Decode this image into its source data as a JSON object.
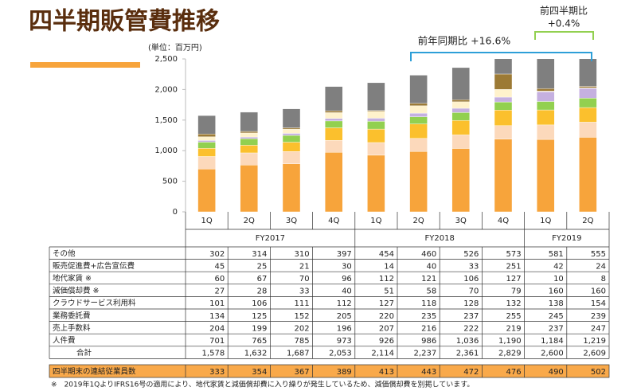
{
  "chart_data": {
    "type": "bar",
    "title": "四半期販管費推移",
    "unit_label": "(単位：百万円)",
    "groups": [
      {
        "label": "FY2017",
        "categories": [
          "1Q",
          "2Q",
          "3Q",
          "4Q"
        ]
      },
      {
        "label": "FY2018",
        "categories": [
          "1Q",
          "2Q",
          "3Q",
          "4Q"
        ]
      },
      {
        "label": "FY2019",
        "categories": [
          "1Q",
          "2Q"
        ]
      }
    ],
    "ylim": [
      0,
      2500
    ],
    "yticks": [
      0,
      500,
      {
        "value": 1000,
        "label": "1,000"
      },
      {
        "value": 1500,
        "label": "1,500"
      },
      {
        "value": 2000,
        "label": "2,000"
      },
      {
        "value": 2500,
        "label": "2,500"
      }
    ],
    "grid": false,
    "series": [
      {
        "name": "その他",
        "color": "#7f7f7f",
        "values": [
          302,
          314,
          310,
          397,
          454,
          460,
          526,
          573,
          581,
          555
        ]
      },
      {
        "name": "販売促進費+広告宣伝費",
        "color": "#9c7a35",
        "values": [
          45,
          25,
          21,
          30,
          14,
          40,
          33,
          251,
          42,
          24
        ]
      },
      {
        "name": "地代家賃 ※",
        "color": "#fff2cc",
        "values": [
          60,
          67,
          70,
          96,
          112,
          121,
          106,
          127,
          10,
          8
        ]
      },
      {
        "name": "減価償却費 ※",
        "color": "#c5b0e0",
        "values": [
          27,
          28,
          33,
          40,
          51,
          58,
          70,
          79,
          160,
          160
        ]
      },
      {
        "name": "クラウドサービス利用料",
        "color": "#92d050",
        "values": [
          101,
          106,
          111,
          112,
          127,
          118,
          128,
          132,
          138,
          154
        ]
      },
      {
        "name": "業務委託費",
        "color": "#fbc02d",
        "values": [
          134,
          125,
          152,
          205,
          220,
          235,
          237,
          255,
          245,
          239
        ]
      },
      {
        "name": "売上手数料",
        "color": "#fcd9bb",
        "values": [
          204,
          199,
          202,
          196,
          207,
          216,
          222,
          219,
          237,
          247
        ]
      },
      {
        "name": "人件費",
        "color": "#f7a43b",
        "values": [
          701,
          765,
          785,
          973,
          926,
          986,
          1036,
          1190,
          1184,
          1219
        ],
        "value_labels": [
          "701",
          "765",
          "785",
          "973",
          "926",
          "986",
          "1,036",
          "1,190",
          "1,184",
          "1,219"
        ]
      }
    ],
    "totals": {
      "name": "合計",
      "values": [
        1578,
        1632,
        1687,
        2053,
        2114,
        2237,
        2361,
        2829,
        2600,
        2609
      ],
      "value_labels": [
        "1,578",
        "1,632",
        "1,687",
        "2,053",
        "2,114",
        "2,237",
        "2,361",
        "2,829",
        "2,600",
        "2,609"
      ]
    },
    "employees": {
      "name": "四半期末の連結従業員数",
      "color": "#f9a94a",
      "values": [
        333,
        354,
        367,
        389,
        413,
        443,
        472,
        476,
        490,
        502
      ]
    },
    "annotations": [
      {
        "text": "前年同期比 +16.6%",
        "color": "#2e9fd8"
      },
      {
        "text": [
          "前四半期比",
          "+0.4%"
        ],
        "color": "#92d050"
      }
    ],
    "footnote": "※　2019年1QよりIFRS16号の適用により、地代家賃と減価償却費に入り繰りが発生しているため、減価償却費を別掲しています。"
  }
}
